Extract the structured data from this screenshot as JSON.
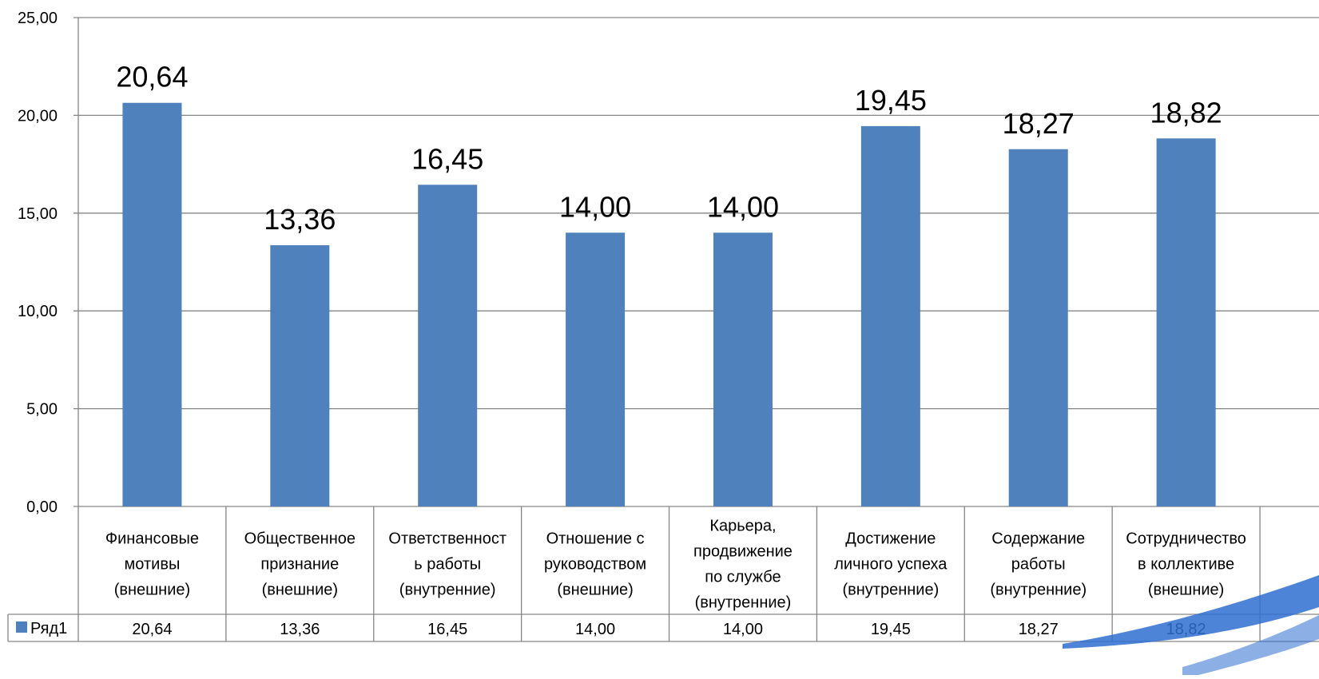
{
  "chart_data": {
    "type": "bar",
    "categories": [
      [
        "Финансовые",
        "мотивы",
        "(внешние)"
      ],
      [
        "Общественное",
        "признание",
        "(внешние)"
      ],
      [
        "Ответственност",
        "ь работы",
        "(внутренние)"
      ],
      [
        "Отношение с",
        "руководством",
        "(внешние)"
      ],
      [
        "Карьера,",
        "продвижение",
        "по службе",
        "(внутренние)"
      ],
      [
        "Достижение",
        "личного успеха",
        "(внутренние)"
      ],
      [
        "Содержание",
        "работы",
        "(внутренние)"
      ],
      [
        "Сотрудничество",
        "в коллективе",
        "(внешние)"
      ]
    ],
    "series": [
      {
        "name": "Ряд1",
        "values": [
          20.64,
          13.36,
          16.45,
          14.0,
          14.0,
          19.45,
          18.27,
          18.82
        ],
        "labels": [
          "20,64",
          "13,36",
          "16,45",
          "14,00",
          "14,00",
          "19,45",
          "18,27",
          "18,82"
        ],
        "color": "#4F81BD"
      }
    ],
    "ylim": [
      0,
      25
    ],
    "yticks": [
      0,
      5,
      10,
      15,
      20,
      25
    ],
    "ytick_labels": [
      "0,00",
      "5,00",
      "10,00",
      "15,00",
      "20,00",
      "25,00"
    ],
    "grid": true,
    "data_table": true,
    "title": "",
    "xlabel": "",
    "ylabel": ""
  },
  "colors": {
    "bar": "#4F81BD",
    "grid": "#868686",
    "axis": "#868686",
    "decor_swoosh": "#2E6FD1"
  }
}
